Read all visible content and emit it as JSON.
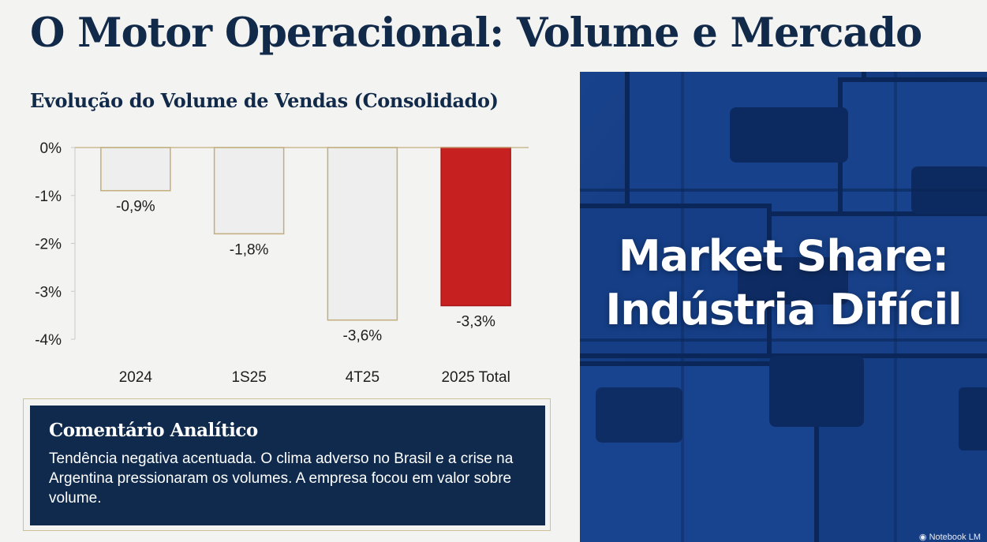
{
  "slide": {
    "title": "O Motor Operacional: Volume e Mercado"
  },
  "chart_data": {
    "type": "bar",
    "title": "Evolução do Volume de Vendas (Consolidado)",
    "categories": [
      "2024",
      "1S25",
      "4T25",
      "2025 Total"
    ],
    "values": [
      -0.9,
      -1.8,
      -3.6,
      -3.3
    ],
    "data_labels": [
      "-0,9%",
      "-1,8%",
      "-3,6%",
      "-3,3%"
    ],
    "highlight_index": 3,
    "ylim": [
      -4,
      0
    ],
    "yticks": [
      0,
      -1,
      -2,
      -3,
      -4
    ],
    "ytick_labels": [
      "0%",
      "-1%",
      "-2%",
      "-3%",
      "-4%"
    ],
    "xlabel": "",
    "ylabel": "",
    "grid": false,
    "colors": {
      "bar_fill": "#eeeeee",
      "bar_stroke": "#c2ae7c",
      "highlight_fill": "#c62020",
      "highlight_stroke": "#a81818",
      "axis": "#c9c9c9",
      "zero_line": "#c2ae7c"
    }
  },
  "commentary": {
    "heading": "Comentário Analítico",
    "text": "Tendência negativa acentuada. O clima adverso no Brasil e a crise na Argentina pressionaram os volumes. A empresa focou em valor sobre volume."
  },
  "panel": {
    "line1": "Market Share:",
    "line2": "Indústria Difícil",
    "image_subject": "stacked-blue-crates",
    "watermark": "Notebook LM"
  },
  "colors": {
    "title": "#122a4a",
    "navy_box": "#0f2a4c",
    "frame": "#cdbf96",
    "photo_blue": "#143e86"
  }
}
